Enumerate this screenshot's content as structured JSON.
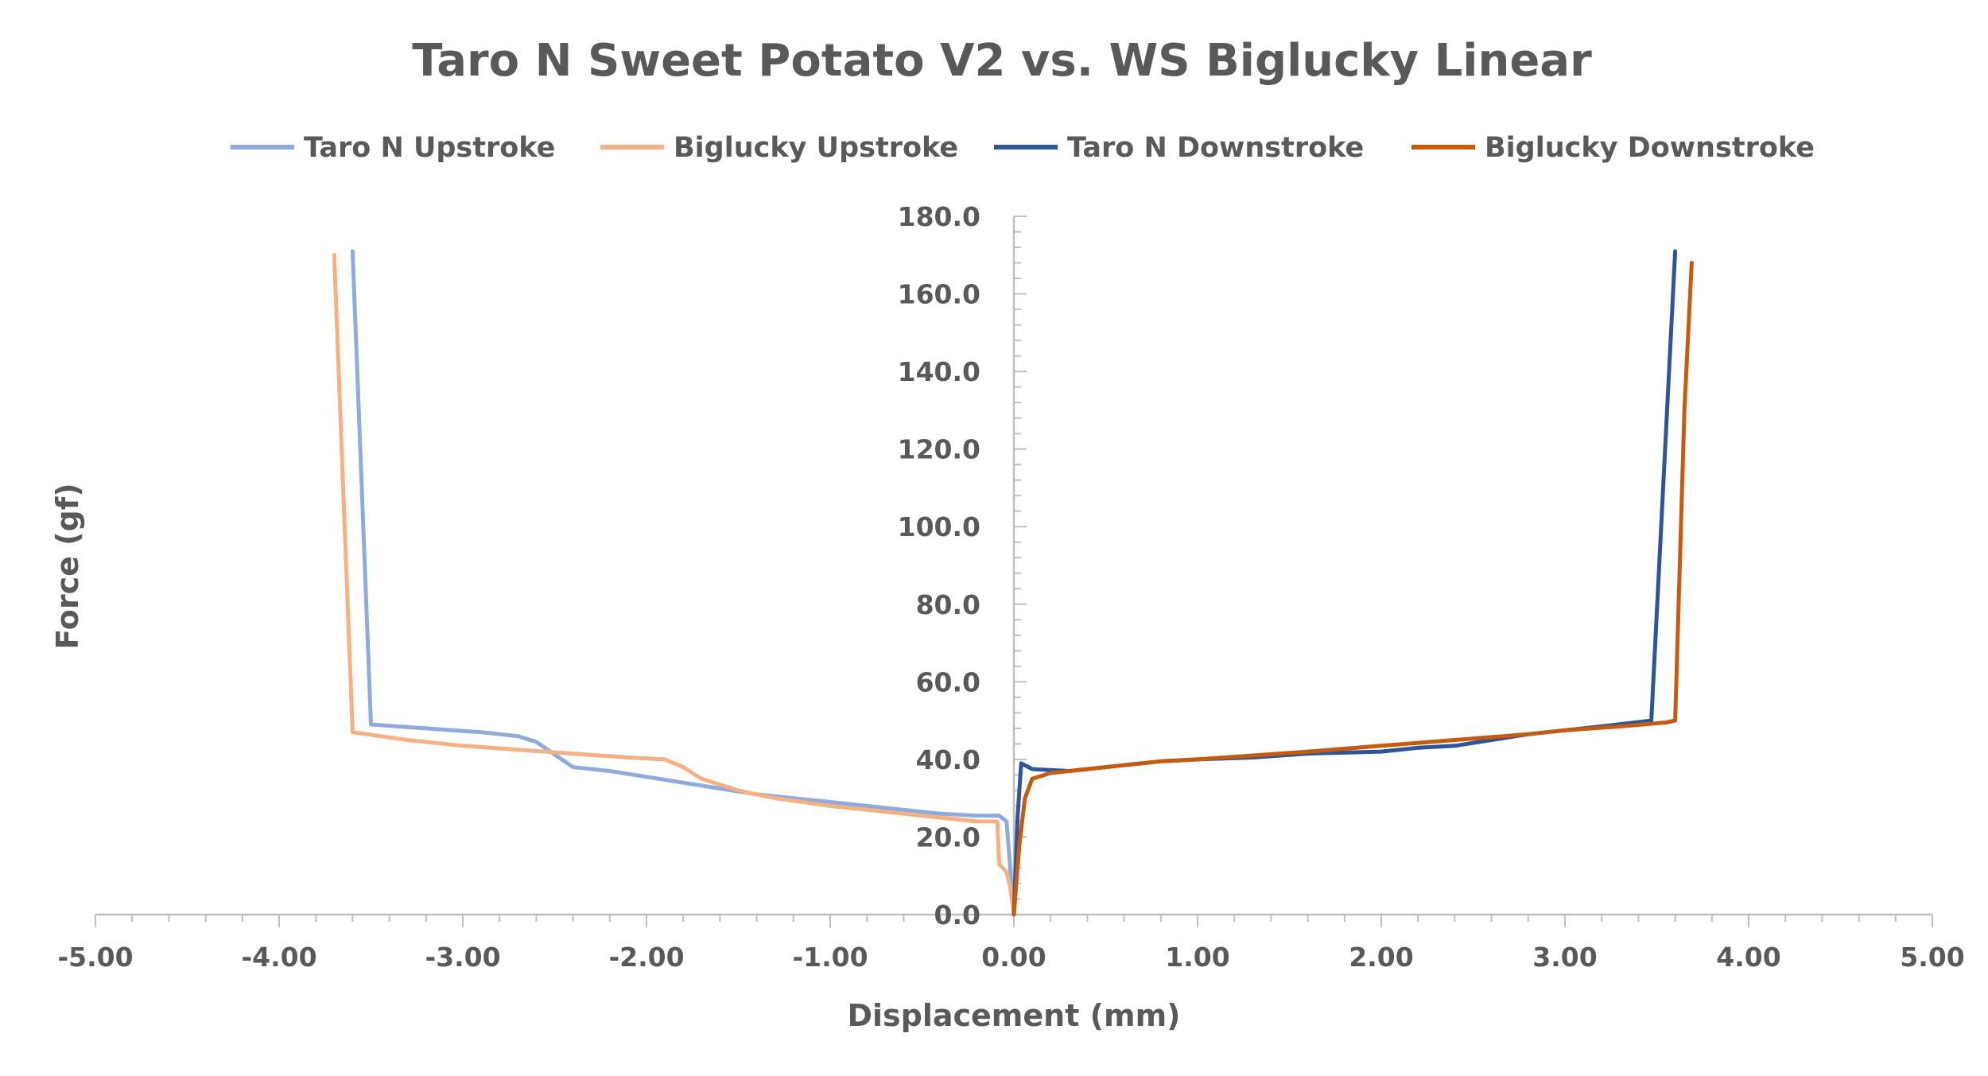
{
  "chart_data": {
    "type": "line",
    "title": "Taro N Sweet Potato V2 vs. WS Biglucky Linear",
    "xlabel": "Displacement (mm)",
    "ylabel": "Force (gf)",
    "xlim": [
      -5,
      5
    ],
    "ylim": [
      0,
      180
    ],
    "x_ticks": [
      -5,
      -4,
      -3,
      -2,
      -1,
      0,
      1,
      2,
      3,
      4,
      5
    ],
    "x_tick_labels": [
      "-5.00",
      "-4.00",
      "-3.00",
      "-2.00",
      "-1.00",
      "0.00",
      "1.00",
      "2.00",
      "3.00",
      "4.00",
      "5.00"
    ],
    "y_ticks": [
      0,
      20,
      40,
      60,
      80,
      100,
      120,
      140,
      160,
      180
    ],
    "y_tick_labels": [
      "0.0",
      "20.0",
      "40.0",
      "60.0",
      "80.0",
      "100.0",
      "120.0",
      "140.0",
      "160.0",
      "180.0"
    ],
    "legend_position": "top",
    "grid": false,
    "series": [
      {
        "name": "Taro N Upstroke",
        "color": "#8faadc",
        "points": [
          [
            -3.6,
            171
          ],
          [
            -3.5,
            49
          ],
          [
            -3.2,
            48
          ],
          [
            -2.9,
            47
          ],
          [
            -2.7,
            46
          ],
          [
            -2.6,
            44.5
          ],
          [
            -2.4,
            38
          ],
          [
            -2.2,
            37
          ],
          [
            -2.0,
            35.5
          ],
          [
            -1.8,
            34
          ],
          [
            -1.6,
            32.5
          ],
          [
            -1.4,
            31
          ],
          [
            -1.2,
            30
          ],
          [
            -1.0,
            29
          ],
          [
            -0.8,
            28
          ],
          [
            -0.6,
            27
          ],
          [
            -0.4,
            26
          ],
          [
            -0.2,
            25.5
          ],
          [
            -0.08,
            25.5
          ],
          [
            -0.04,
            24
          ],
          [
            -0.02,
            12
          ],
          [
            0.0,
            0
          ]
        ]
      },
      {
        "name": "Biglucky Upstroke",
        "color": "#f4b183",
        "points": [
          [
            -3.7,
            170
          ],
          [
            -3.6,
            47
          ],
          [
            -3.3,
            45
          ],
          [
            -3.0,
            43.5
          ],
          [
            -2.7,
            42.5
          ],
          [
            -2.4,
            41.5
          ],
          [
            -2.1,
            40.5
          ],
          [
            -1.9,
            40
          ],
          [
            -1.8,
            38
          ],
          [
            -1.7,
            35
          ],
          [
            -1.5,
            32
          ],
          [
            -1.3,
            30
          ],
          [
            -1.0,
            28
          ],
          [
            -0.8,
            27
          ],
          [
            -0.6,
            26
          ],
          [
            -0.4,
            25
          ],
          [
            -0.2,
            24
          ],
          [
            -0.09,
            24
          ],
          [
            -0.08,
            13
          ],
          [
            -0.04,
            11
          ],
          [
            -0.02,
            7
          ],
          [
            0.0,
            0
          ]
        ]
      },
      {
        "name": "Taro N Downstroke",
        "color": "#2f5597",
        "points": [
          [
            0.0,
            0
          ],
          [
            0.02,
            25
          ],
          [
            0.04,
            39
          ],
          [
            0.08,
            38
          ],
          [
            0.1,
            37.5
          ],
          [
            0.3,
            37
          ],
          [
            0.5,
            38
          ],
          [
            0.8,
            39.5
          ],
          [
            1.0,
            40
          ],
          [
            1.3,
            40.5
          ],
          [
            1.6,
            41.5
          ],
          [
            2.0,
            42
          ],
          [
            2.2,
            43
          ],
          [
            2.4,
            43.5
          ],
          [
            2.6,
            45
          ],
          [
            2.8,
            46.5
          ],
          [
            3.0,
            47.5
          ],
          [
            3.2,
            48.5
          ],
          [
            3.47,
            50
          ],
          [
            3.6,
            171
          ]
        ]
      },
      {
        "name": "Biglucky Downstroke",
        "color": "#c55a11",
        "points": [
          [
            0.0,
            0
          ],
          [
            0.03,
            18
          ],
          [
            0.06,
            30
          ],
          [
            0.1,
            35
          ],
          [
            0.2,
            36.5
          ],
          [
            0.4,
            37.5
          ],
          [
            0.6,
            38.5
          ],
          [
            0.8,
            39.5
          ],
          [
            1.0,
            40
          ],
          [
            1.3,
            41
          ],
          [
            1.6,
            42
          ],
          [
            2.0,
            43.5
          ],
          [
            2.4,
            45
          ],
          [
            2.8,
            46.5
          ],
          [
            3.0,
            47.5
          ],
          [
            3.3,
            48.5
          ],
          [
            3.55,
            49.5
          ],
          [
            3.6,
            50
          ],
          [
            3.65,
            130
          ],
          [
            3.69,
            168
          ]
        ]
      }
    ]
  }
}
